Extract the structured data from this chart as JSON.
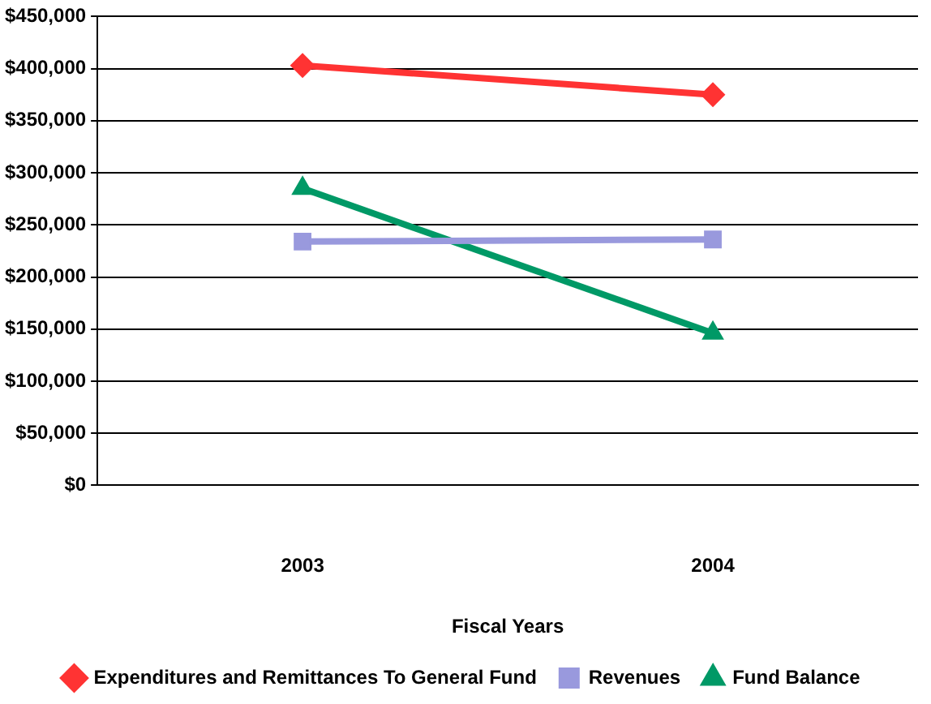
{
  "chart_data": {
    "type": "line",
    "xlabel": "Fiscal Years",
    "categories": [
      "2003",
      "2004"
    ],
    "series": [
      {
        "name": "Expenditures and Remittances To General Fund",
        "color": "#ff3333",
        "marker": "diamond",
        "values": [
          403000,
          375000
        ]
      },
      {
        "name": "Revenues",
        "color": "#9999dd",
        "marker": "square",
        "values": [
          234000,
          236000
        ]
      },
      {
        "name": "Fund Balance",
        "color": "#009966",
        "marker": "triangle",
        "values": [
          285000,
          146000
        ]
      }
    ],
    "ylim": [
      0,
      450000
    ],
    "yticks": [
      {
        "value": 0,
        "label": "$0"
      },
      {
        "value": 50000,
        "label": "$50,000"
      },
      {
        "value": 100000,
        "label": "$100,000"
      },
      {
        "value": 150000,
        "label": "$150,000"
      },
      {
        "value": 200000,
        "label": "$200,000"
      },
      {
        "value": 250000,
        "label": "$250,000"
      },
      {
        "value": 300000,
        "label": "$300,000"
      },
      {
        "value": 350000,
        "label": "$350,000"
      },
      {
        "value": 400000,
        "label": "$400,000"
      },
      {
        "value": 450000,
        "label": "$450,000"
      }
    ],
    "grid": "y",
    "legend": "bottom",
    "line_style": "solid"
  }
}
